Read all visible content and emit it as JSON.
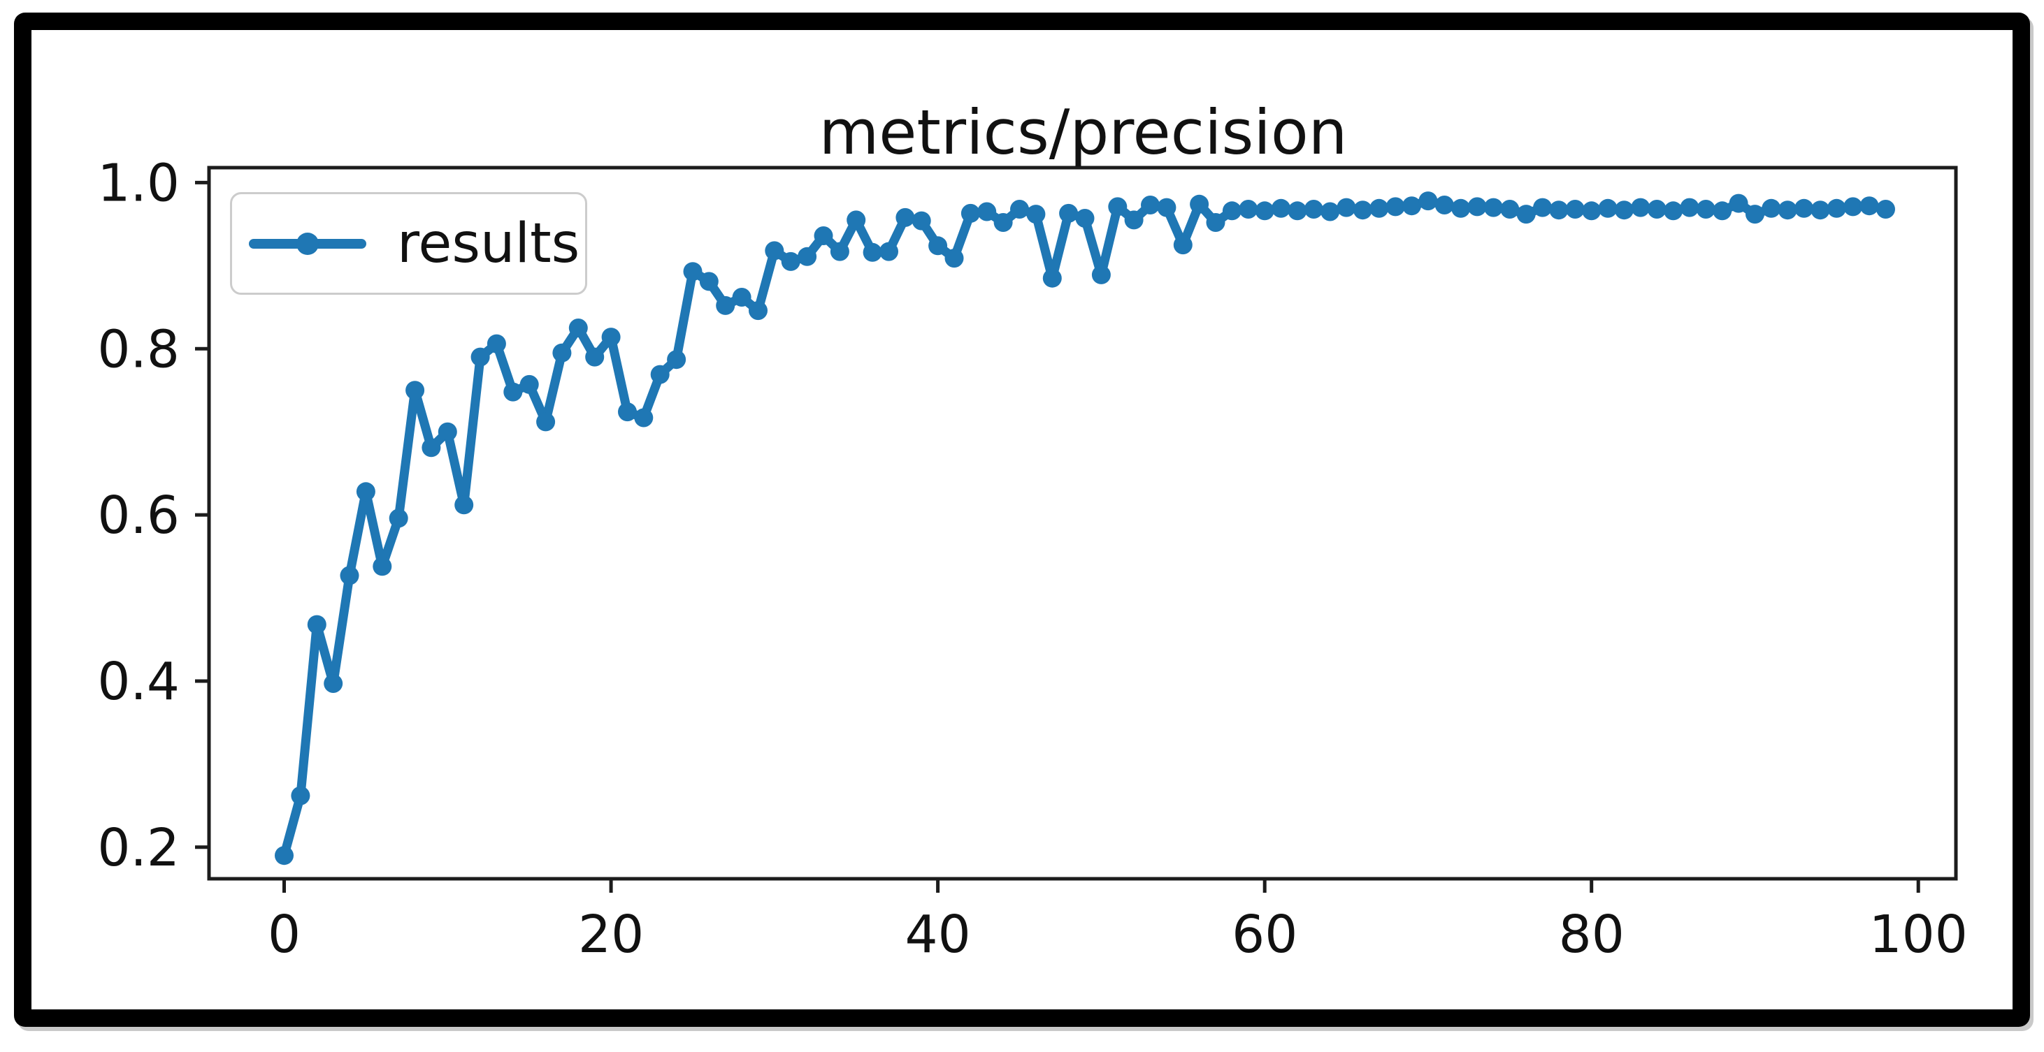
{
  "page": {
    "background": "#ffffff",
    "frame_color": "#000000",
    "text_color": "#111111",
    "spine_color": "#1c1c1c"
  },
  "chart_data": {
    "type": "line",
    "title": "metrics/precision",
    "xlabel": "",
    "ylabel": "",
    "grid": false,
    "legend": {
      "label": "results",
      "position": "upper-left"
    },
    "line_color": "#1f77b4",
    "marker": "circle",
    "xlim": [
      -4.6,
      102.3
    ],
    "ylim": [
      0.162,
      1.018
    ],
    "xticks": [
      0,
      20,
      40,
      60,
      80,
      100
    ],
    "yticks": [
      0.2,
      0.4,
      0.6,
      0.8,
      1.0
    ],
    "x": [
      0,
      1,
      2,
      3,
      4,
      5,
      6,
      7,
      8,
      9,
      10,
      11,
      12,
      13,
      14,
      15,
      16,
      17,
      18,
      19,
      20,
      21,
      22,
      23,
      24,
      25,
      26,
      27,
      28,
      29,
      30,
      31,
      32,
      33,
      34,
      35,
      36,
      37,
      38,
      39,
      40,
      41,
      42,
      43,
      44,
      45,
      46,
      47,
      48,
      49,
      50,
      51,
      52,
      53,
      54,
      55,
      56,
      57,
      58,
      59,
      60,
      61,
      62,
      63,
      64,
      65,
      66,
      67,
      68,
      69,
      70,
      71,
      72,
      73,
      74,
      75,
      76,
      77,
      78,
      79,
      80,
      81,
      82,
      83,
      84,
      85,
      86,
      87,
      88,
      89,
      90,
      91,
      92,
      93,
      94,
      95,
      96,
      97,
      98
    ],
    "values": [
      0.19,
      0.262,
      0.468,
      0.397,
      0.527,
      0.628,
      0.538,
      0.596,
      0.75,
      0.681,
      0.7,
      0.612,
      0.79,
      0.806,
      0.748,
      0.757,
      0.712,
      0.795,
      0.825,
      0.79,
      0.814,
      0.724,
      0.717,
      0.769,
      0.787,
      0.893,
      0.881,
      0.852,
      0.862,
      0.846,
      0.918,
      0.905,
      0.911,
      0.936,
      0.917,
      0.955,
      0.916,
      0.917,
      0.958,
      0.954,
      0.924,
      0.909,
      0.963,
      0.965,
      0.952,
      0.968,
      0.962,
      0.885,
      0.963,
      0.957,
      0.889,
      0.971,
      0.955,
      0.973,
      0.97,
      0.925,
      0.974,
      0.952,
      0.966,
      0.968,
      0.966,
      0.969,
      0.966,
      0.968,
      0.965,
      0.97,
      0.967,
      0.969,
      0.971,
      0.972,
      0.978,
      0.973,
      0.969,
      0.971,
      0.97,
      0.968,
      0.962,
      0.97,
      0.967,
      0.968,
      0.966,
      0.969,
      0.967,
      0.97,
      0.968,
      0.966,
      0.97,
      0.968,
      0.966,
      0.975,
      0.962,
      0.969,
      0.967,
      0.969,
      0.967,
      0.969,
      0.971,
      0.972,
      0.968
    ]
  }
}
